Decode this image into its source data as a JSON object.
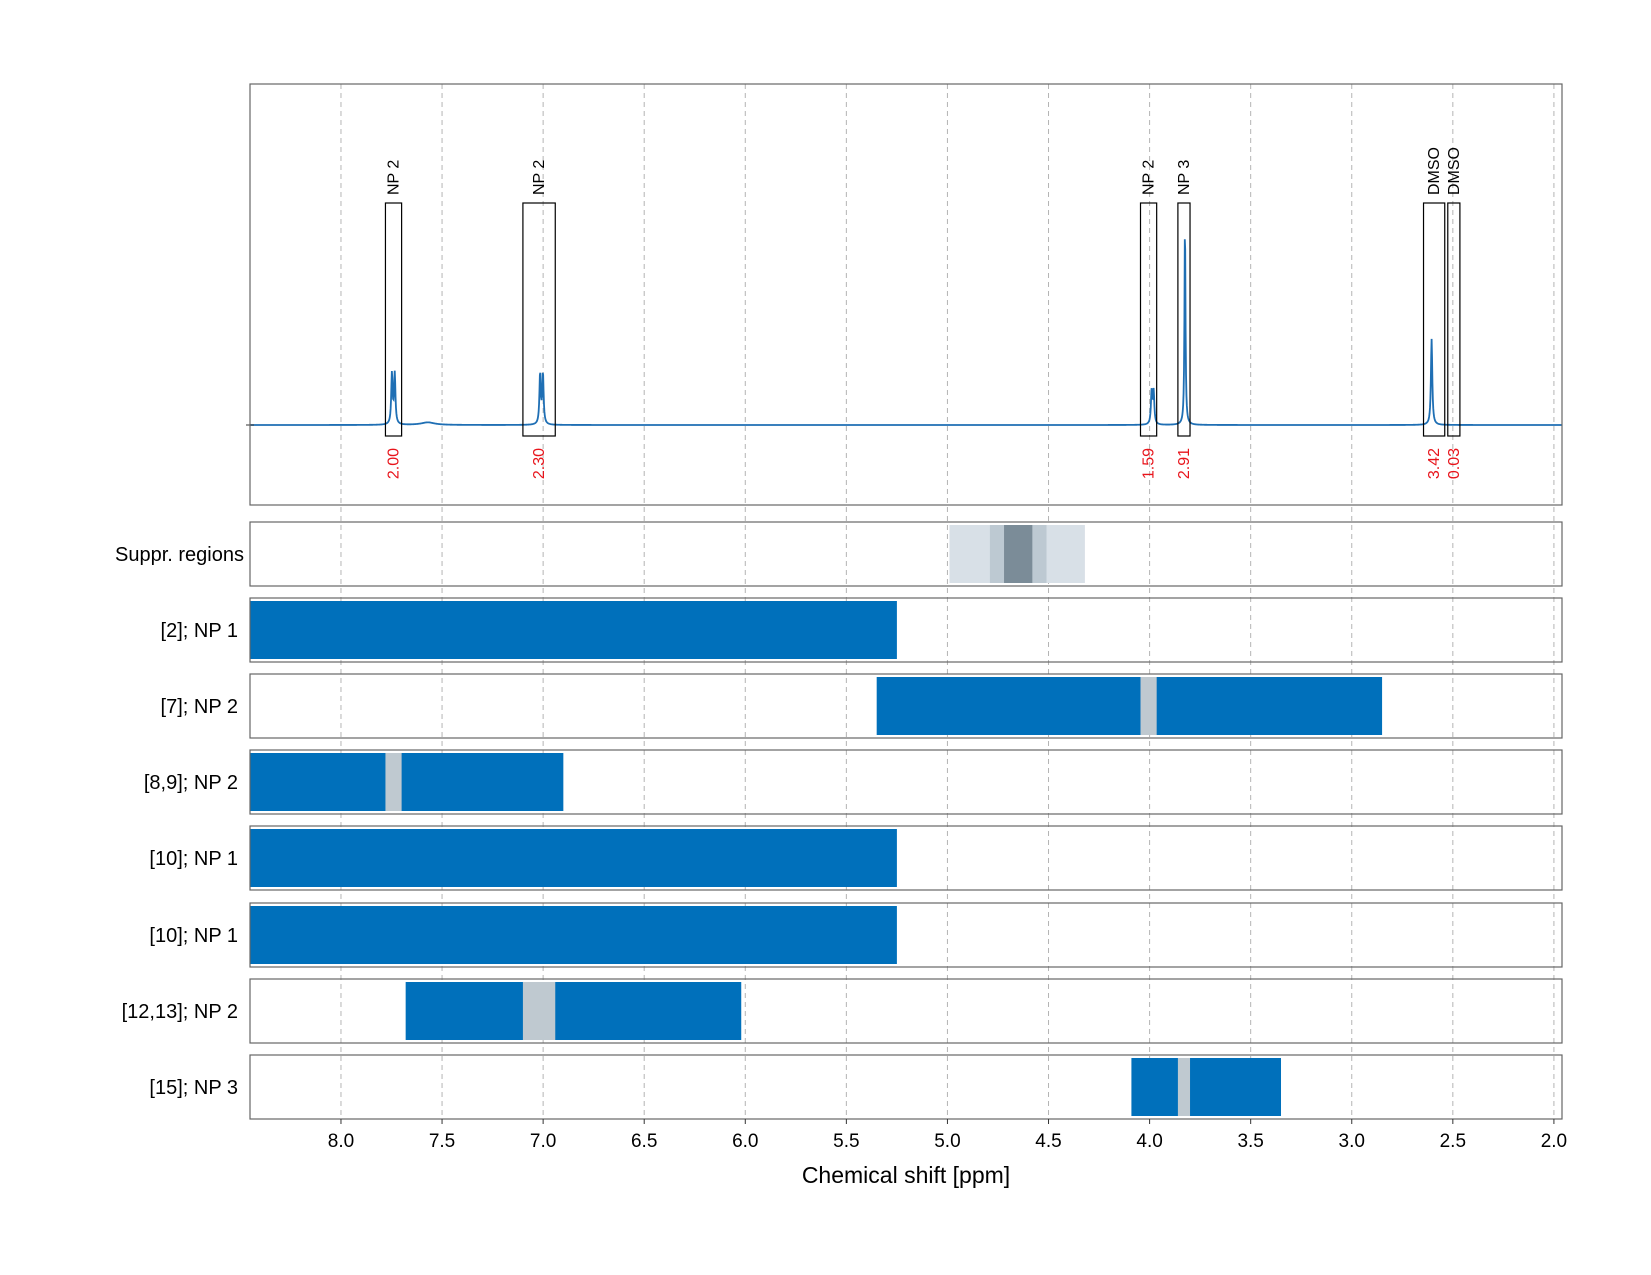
{
  "chart_data": {
    "type": "nmr-spectrum-with-regions",
    "xlabel": "Chemical shift [ppm]",
    "xlim": [
      8.45,
      1.96
    ],
    "x_ticks": [
      8.0,
      7.5,
      7.0,
      6.5,
      6.0,
      5.5,
      5.0,
      4.5,
      4.0,
      3.5,
      3.0,
      2.5,
      2.0
    ],
    "x_tick_labels": [
      "8.0",
      "7.5",
      "7.0",
      "6.5",
      "6.0",
      "5.5",
      "5.0",
      "4.5",
      "4.0",
      "3.5",
      "3.0",
      "2.5",
      "2.0"
    ],
    "colors": {
      "spectrum": "#1f6fb4",
      "region": "#0070bb",
      "gap": "#bfc9d0",
      "suppr_light": "#d8e0e7",
      "suppr_mid": "#bdc9d2",
      "suppr_dark": "#7b8c98",
      "integral_text": "#e8141b",
      "grid": "#b4b4b4"
    },
    "spectrum": {
      "baseline_level": 0.0,
      "peaks": [
        {
          "center": 7.748,
          "height": 0.155,
          "width": 0.004
        },
        {
          "center": 7.734,
          "height": 0.155,
          "width": 0.004
        },
        {
          "center": 7.015,
          "height": 0.155,
          "width": 0.004
        },
        {
          "center": 7.001,
          "height": 0.155,
          "width": 0.004
        },
        {
          "center": 3.99,
          "height": 0.1,
          "width": 0.004
        },
        {
          "center": 3.98,
          "height": 0.1,
          "width": 0.004
        },
        {
          "center": 3.825,
          "height": 0.62,
          "width": 0.003
        },
        {
          "center": 2.605,
          "height": 0.265,
          "width": 0.004
        },
        {
          "center": 7.57,
          "height": 0.008,
          "width": 0.04
        }
      ],
      "annotations": [
        {
          "label": "NP 2",
          "integral": "2.00",
          "x_start": 7.78,
          "x_end": 7.7
        },
        {
          "label": "NP 2",
          "integral": "2.30",
          "x_start": 7.1,
          "x_end": 6.94
        },
        {
          "label": "NP 2",
          "integral": "1.59",
          "x_start": 4.045,
          "x_end": 3.965
        },
        {
          "label": "NP 3",
          "integral": "2.91",
          "x_start": 3.86,
          "x_end": 3.8
        },
        {
          "label": "DMSO",
          "integral": "3.42",
          "x_start": 2.645,
          "x_end": 2.54
        },
        {
          "label": "DMSO",
          "integral": "0.03",
          "x_start": 2.525,
          "x_end": 2.465
        }
      ]
    },
    "suppression": {
      "label": "Suppr. regions",
      "bands": [
        {
          "x_start": 4.99,
          "x_end": 4.32,
          "shade": "light"
        },
        {
          "x_start": 4.79,
          "x_end": 4.51,
          "shade": "mid"
        },
        {
          "x_start": 4.72,
          "x_end": 4.58,
          "shade": "dark"
        }
      ]
    },
    "region_rows": [
      {
        "label": "[2]; NP 1",
        "bars": [
          {
            "x_start": 8.45,
            "x_end": 5.25
          }
        ],
        "gaps": []
      },
      {
        "label": "[7]; NP 2",
        "bars": [
          {
            "x_start": 5.35,
            "x_end": 2.85
          }
        ],
        "gaps": [
          {
            "x_start": 4.045,
            "x_end": 3.965
          }
        ]
      },
      {
        "label": "[8,9]; NP 2",
        "bars": [
          {
            "x_start": 8.45,
            "x_end": 6.9
          }
        ],
        "gaps": [
          {
            "x_start": 7.78,
            "x_end": 7.7
          }
        ]
      },
      {
        "label": "[10]; NP 1",
        "bars": [
          {
            "x_start": 8.45,
            "x_end": 5.25
          }
        ],
        "gaps": []
      },
      {
        "label": "[10]; NP 1",
        "bars": [
          {
            "x_start": 8.45,
            "x_end": 5.25
          }
        ],
        "gaps": []
      },
      {
        "label": "[12,13]; NP 2",
        "bars": [
          {
            "x_start": 7.68,
            "x_end": 6.02
          }
        ],
        "gaps": [
          {
            "x_start": 7.1,
            "x_end": 6.94
          }
        ]
      },
      {
        "label": "[15]; NP 3",
        "bars": [
          {
            "x_start": 4.09,
            "x_end": 3.35
          }
        ],
        "gaps": [
          {
            "x_start": 3.86,
            "x_end": 3.8
          }
        ]
      }
    ]
  }
}
